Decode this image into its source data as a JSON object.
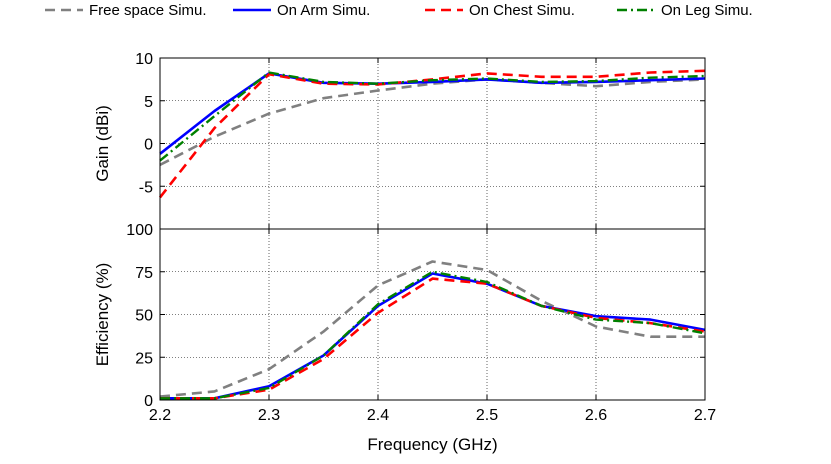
{
  "chart_data": [
    {
      "type": "line",
      "xlabel": "",
      "ylabel": "Gain (dBi)",
      "xlim": [
        2.2,
        2.7
      ],
      "ylim": [
        -10,
        10
      ],
      "xticks": [
        2.2,
        2.3,
        2.4,
        2.5,
        2.6,
        2.7
      ],
      "xtick_labels": [],
      "yticks": [
        -10,
        -5,
        0,
        5,
        10
      ],
      "ytick_labels": [
        "",
        "-5",
        "0",
        "5",
        "10"
      ],
      "grid": true,
      "x": [
        2.2,
        2.25,
        2.3,
        2.35,
        2.4,
        2.45,
        2.5,
        2.55,
        2.6,
        2.65,
        2.7
      ],
      "series": [
        {
          "name": "Free space Simu.",
          "color": "#808080",
          "dash": "dashed",
          "values": [
            -2.5,
            0.8,
            3.5,
            5.3,
            6.2,
            7.0,
            7.5,
            7.1,
            6.7,
            7.2,
            7.5
          ]
        },
        {
          "name": "On Arm Simu.",
          "color": "#0000ff",
          "dash": "solid",
          "values": [
            -1.2,
            3.8,
            8.2,
            7.1,
            7.0,
            7.2,
            7.5,
            7.1,
            7.2,
            7.4,
            7.6
          ]
        },
        {
          "name": "On Chest Simu.",
          "color": "#ff0000",
          "dash": "dashed",
          "values": [
            -6.3,
            1.8,
            8.1,
            7.0,
            6.9,
            7.5,
            8.2,
            7.8,
            7.8,
            8.3,
            8.5
          ]
        },
        {
          "name": "On Leg Simu.",
          "color": "#008000",
          "dash": "dashdot",
          "values": [
            -2.0,
            3.2,
            8.3,
            7.2,
            7.0,
            7.4,
            7.6,
            7.2,
            7.3,
            7.7,
            7.9
          ]
        }
      ]
    },
    {
      "type": "line",
      "xlabel": "Frequency (GHz)",
      "ylabel": "Efficiency (%)",
      "xlim": [
        2.2,
        2.7
      ],
      "ylim": [
        0,
        100
      ],
      "xticks": [
        2.2,
        2.3,
        2.4,
        2.5,
        2.6,
        2.7
      ],
      "xtick_labels": [
        "2.2",
        "2.3",
        "2.4",
        "2.5",
        "2.6",
        "2.7"
      ],
      "yticks": [
        0,
        25,
        50,
        75,
        100
      ],
      "ytick_labels": [
        "0",
        "25",
        "50",
        "75",
        "100"
      ],
      "grid": true,
      "x": [
        2.2,
        2.25,
        2.3,
        2.35,
        2.4,
        2.45,
        2.5,
        2.55,
        2.6,
        2.65,
        2.7
      ],
      "series": [
        {
          "name": "Free space Simu.",
          "color": "#808080",
          "dash": "dashed",
          "values": [
            2,
            5,
            18,
            40,
            67,
            81,
            76,
            58,
            43,
            37,
            37
          ]
        },
        {
          "name": "On Arm Simu.",
          "color": "#0000ff",
          "dash": "solid",
          "values": [
            1,
            1,
            8,
            26,
            55,
            74,
            68,
            55,
            49,
            47,
            41
          ]
        },
        {
          "name": "On Chest Simu.",
          "color": "#ff0000",
          "dash": "dashed",
          "values": [
            1,
            1,
            6,
            24,
            51,
            71,
            68,
            55,
            48,
            45,
            40
          ]
        },
        {
          "name": "On Leg Simu.",
          "color": "#008000",
          "dash": "dashdot",
          "values": [
            1,
            1,
            7,
            26,
            56,
            75,
            69,
            55,
            47,
            45,
            39
          ]
        }
      ]
    }
  ],
  "legend": {
    "placement": "top",
    "entries": [
      "Free space Simu.",
      "On Arm Simu.",
      "On Chest Simu.",
      "On Leg Simu."
    ]
  }
}
